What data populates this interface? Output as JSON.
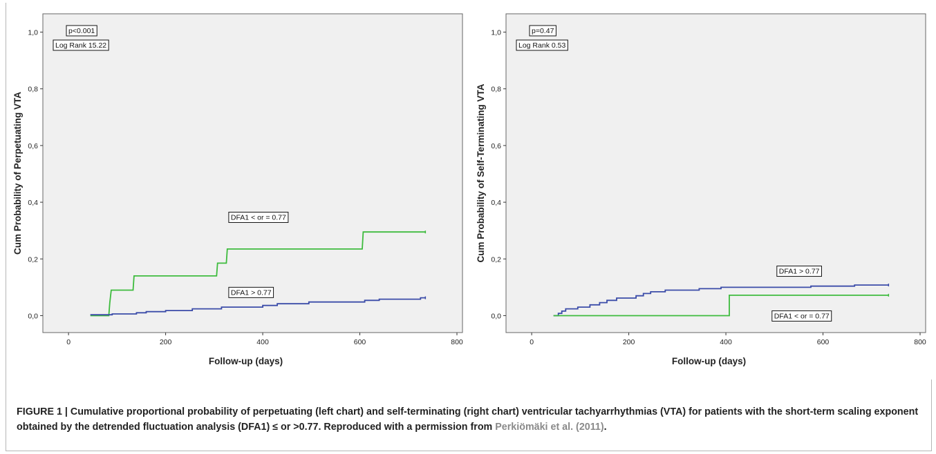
{
  "chart_data": [
    {
      "type": "line",
      "step": true,
      "title": "",
      "xlabel": "Follow-up (days)",
      "ylabel": "Cum Probability of Perpetuating VTA",
      "xlim": [
        -50,
        800
      ],
      "ylim": [
        -0.05,
        1.05
      ],
      "xticks": [
        "0",
        "200",
        "400",
        "600",
        "800"
      ],
      "yticks": [
        "0,0",
        "0,2",
        "0,4",
        "0,6",
        "0,8",
        "1,0"
      ],
      "grid": false,
      "stat_labels": [
        "p<0.001",
        "Log Rank 15.22"
      ],
      "series": [
        {
          "name": "DFA1 < or = 0.77",
          "color": "#3dbb3d",
          "label_position": [
            330,
            0.365
          ],
          "points": [
            [
              45,
              0.0
            ],
            [
              83,
              0.0
            ],
            [
              85,
              0.045
            ],
            [
              88,
              0.09
            ],
            [
              133,
              0.09
            ],
            [
              135,
              0.14
            ],
            [
              305,
              0.14
            ],
            [
              307,
              0.185
            ],
            [
              325,
              0.185
            ],
            [
              327,
              0.235
            ],
            [
              605,
              0.235
            ],
            [
              607,
              0.295
            ],
            [
              735,
              0.295
            ]
          ]
        },
        {
          "name": "DFA1 > 0.77",
          "color": "#3a4ba8",
          "label_position": [
            330,
            0.1
          ],
          "points": [
            [
              45,
              0.003
            ],
            [
              90,
              0.003
            ],
            [
              90,
              0.006
            ],
            [
              140,
              0.006
            ],
            [
              140,
              0.01
            ],
            [
              160,
              0.01
            ],
            [
              160,
              0.014
            ],
            [
              200,
              0.014
            ],
            [
              200,
              0.018
            ],
            [
              255,
              0.018
            ],
            [
              255,
              0.024
            ],
            [
              315,
              0.024
            ],
            [
              315,
              0.03
            ],
            [
              400,
              0.03
            ],
            [
              400,
              0.036
            ],
            [
              430,
              0.036
            ],
            [
              430,
              0.042
            ],
            [
              495,
              0.042
            ],
            [
              495,
              0.048
            ],
            [
              610,
              0.048
            ],
            [
              610,
              0.054
            ],
            [
              640,
              0.054
            ],
            [
              640,
              0.058
            ],
            [
              725,
              0.058
            ],
            [
              725,
              0.063
            ],
            [
              735,
              0.063
            ]
          ]
        }
      ]
    },
    {
      "type": "line",
      "step": true,
      "title": "",
      "xlabel": "Follow-up (days)",
      "ylabel": "Cum Probability of Self-Terminating VTA",
      "xlim": [
        -50,
        800
      ],
      "ylim": [
        -0.05,
        1.05
      ],
      "xticks": [
        "0",
        "200",
        "400",
        "600",
        "800"
      ],
      "yticks": [
        "0,0",
        "0,2",
        "0,4",
        "0,6",
        "0,8",
        "1,0"
      ],
      "grid": false,
      "stat_labels": [
        "p=0.47",
        "Log Rank 0.53"
      ],
      "series": [
        {
          "name": "DFA1 > 0.77",
          "color": "#3a4ba8",
          "label_position": [
            505,
            0.175
          ],
          "points": [
            [
              45,
              0.0
            ],
            [
              55,
              0.0
            ],
            [
              55,
              0.008
            ],
            [
              62,
              0.008
            ],
            [
              62,
              0.016
            ],
            [
              70,
              0.016
            ],
            [
              70,
              0.024
            ],
            [
              95,
              0.024
            ],
            [
              95,
              0.03
            ],
            [
              120,
              0.03
            ],
            [
              120,
              0.038
            ],
            [
              140,
              0.038
            ],
            [
              140,
              0.046
            ],
            [
              155,
              0.046
            ],
            [
              155,
              0.054
            ],
            [
              175,
              0.054
            ],
            [
              175,
              0.062
            ],
            [
              215,
              0.062
            ],
            [
              215,
              0.07
            ],
            [
              230,
              0.07
            ],
            [
              230,
              0.078
            ],
            [
              245,
              0.078
            ],
            [
              245,
              0.084
            ],
            [
              275,
              0.084
            ],
            [
              275,
              0.09
            ],
            [
              345,
              0.09
            ],
            [
              345,
              0.095
            ],
            [
              390,
              0.095
            ],
            [
              390,
              0.1
            ],
            [
              575,
              0.1
            ],
            [
              575,
              0.104
            ],
            [
              665,
              0.104
            ],
            [
              665,
              0.108
            ],
            [
              735,
              0.108
            ]
          ]
        },
        {
          "name": "DFA1 < or = 0.77",
          "color": "#3dbb3d",
          "label_position": [
            495,
            0.017
          ],
          "points": [
            [
              45,
              0.0
            ],
            [
              407,
              0.0
            ],
            [
              407,
              0.072
            ],
            [
              735,
              0.072
            ]
          ]
        }
      ]
    }
  ],
  "caption": {
    "main": "FIGURE 1 | Cumulative proportional probability of perpetuating (left chart) and self-terminating (right chart) ventricular tachyarrhythmias (VTA) for patients with the short-term scaling exponent obtained by the detrended fluctuation analysis (DFA1) ≤ or >0.77. Reproduced with a permission from ",
    "citation": "Perkiömäki et al. (2011)",
    "end": "."
  }
}
